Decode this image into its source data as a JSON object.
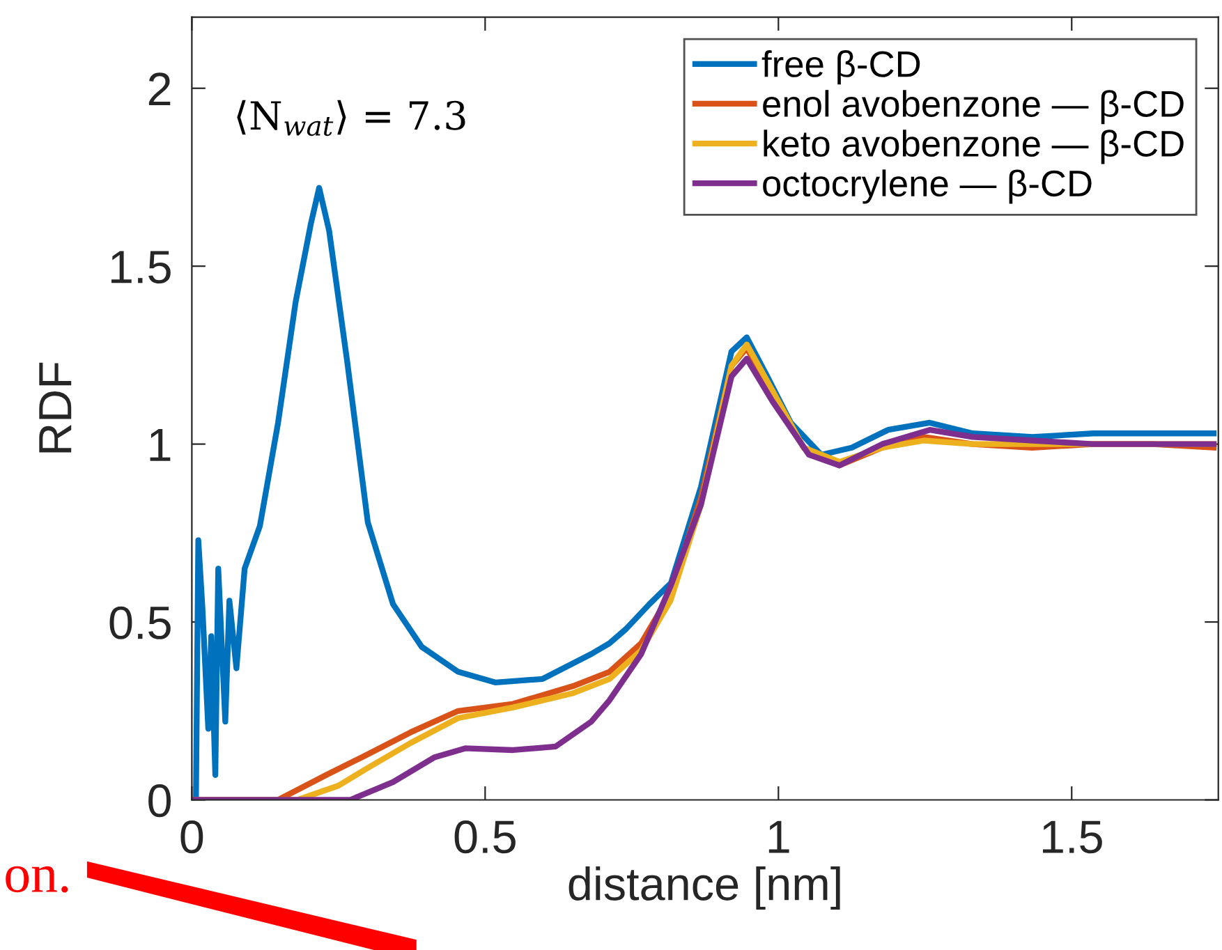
{
  "chart_data": {
    "type": "line",
    "xlabel": "distance [nm]",
    "ylabel": "RDF",
    "xlim": [
      0,
      1.75
    ],
    "ylim": [
      0,
      2.2
    ],
    "xticks": [
      0,
      0.5,
      1,
      1.5
    ],
    "yticks": [
      0,
      0.5,
      1,
      1.5,
      2
    ],
    "grid": false,
    "legend": "top right",
    "line_style": "solid",
    "marker": "none",
    "annotations": [
      "⟨N$_{wat}$⟩ = 7.3",
      "on."
    ],
    "series": [
      {
        "name": "free β-CD",
        "color": "#0072bd",
        "x": [
          0,
          0.007,
          0.011,
          0.018,
          0.028,
          0.033,
          0.04,
          0.045,
          0.057,
          0.064,
          0.076,
          0.09,
          0.116,
          0.147,
          0.177,
          0.203,
          0.217,
          0.234,
          0.265,
          0.3,
          0.343,
          0.392,
          0.454,
          0.518,
          0.598,
          0.681,
          0.712,
          0.74,
          0.78,
          0.817,
          0.868,
          0.92,
          0.946,
          0.981,
          1.021,
          1.073,
          1.125,
          1.187,
          1.258,
          1.331,
          1.433,
          1.537,
          1.638,
          1.742
        ],
        "values": [
          0,
          0,
          0.73,
          0.54,
          0.2,
          0.46,
          0.07,
          0.65,
          0.22,
          0.56,
          0.37,
          0.65,
          0.77,
          1.06,
          1.4,
          1.62,
          1.72,
          1.6,
          1.23,
          0.78,
          0.55,
          0.43,
          0.36,
          0.33,
          0.34,
          0.41,
          0.44,
          0.48,
          0.55,
          0.61,
          0.88,
          1.26,
          1.3,
          1.19,
          1.06,
          0.97,
          0.99,
          1.04,
          1.06,
          1.03,
          1.02,
          1.03,
          1.03,
          1.03
        ]
      },
      {
        "name": "enol avobenzone — β-CD",
        "color": "#d95319",
        "x": [
          0,
          0.147,
          0.229,
          0.29,
          0.373,
          0.454,
          0.548,
          0.65,
          0.712,
          0.766,
          0.816,
          0.868,
          0.92,
          0.946,
          0.99,
          1.043,
          1.104,
          1.177,
          1.248,
          1.331,
          1.433,
          1.537,
          1.638,
          1.742
        ],
        "values": [
          0,
          0,
          0.07,
          0.12,
          0.19,
          0.25,
          0.27,
          0.32,
          0.36,
          0.44,
          0.58,
          0.85,
          1.22,
          1.27,
          1.14,
          0.99,
          0.94,
          0.99,
          1.02,
          1.0,
          0.99,
          1.0,
          1.0,
          0.99
        ]
      },
      {
        "name": "keto avobenzone — β-CD",
        "color": "#edb120",
        "x": [
          0,
          0.18,
          0.25,
          0.3,
          0.373,
          0.454,
          0.548,
          0.65,
          0.712,
          0.766,
          0.816,
          0.868,
          0.92,
          0.946,
          0.99,
          1.043,
          1.104,
          1.177,
          1.248,
          1.331,
          1.433,
          1.537,
          1.638,
          1.742
        ],
        "values": [
          0,
          0,
          0.04,
          0.09,
          0.16,
          0.23,
          0.26,
          0.3,
          0.34,
          0.42,
          0.56,
          0.83,
          1.22,
          1.28,
          1.15,
          0.99,
          0.95,
          0.99,
          1.01,
          1.0,
          1.0,
          1.0,
          1.0,
          1.0
        ]
      },
      {
        "name": "octocrylene — β-CD",
        "color": "#7e2f8e",
        "x": [
          0,
          0.27,
          0.343,
          0.414,
          0.466,
          0.548,
          0.62,
          0.681,
          0.712,
          0.766,
          0.816,
          0.868,
          0.92,
          0.946,
          0.99,
          1.052,
          1.104,
          1.177,
          1.258,
          1.331,
          1.433,
          1.537,
          1.638,
          1.742
        ],
        "values": [
          0,
          0,
          0.05,
          0.12,
          0.145,
          0.14,
          0.15,
          0.22,
          0.28,
          0.41,
          0.6,
          0.83,
          1.19,
          1.24,
          1.12,
          0.97,
          0.94,
          1.0,
          1.04,
          1.02,
          1.01,
          1.0,
          1.0,
          1.0
        ]
      }
    ]
  }
}
